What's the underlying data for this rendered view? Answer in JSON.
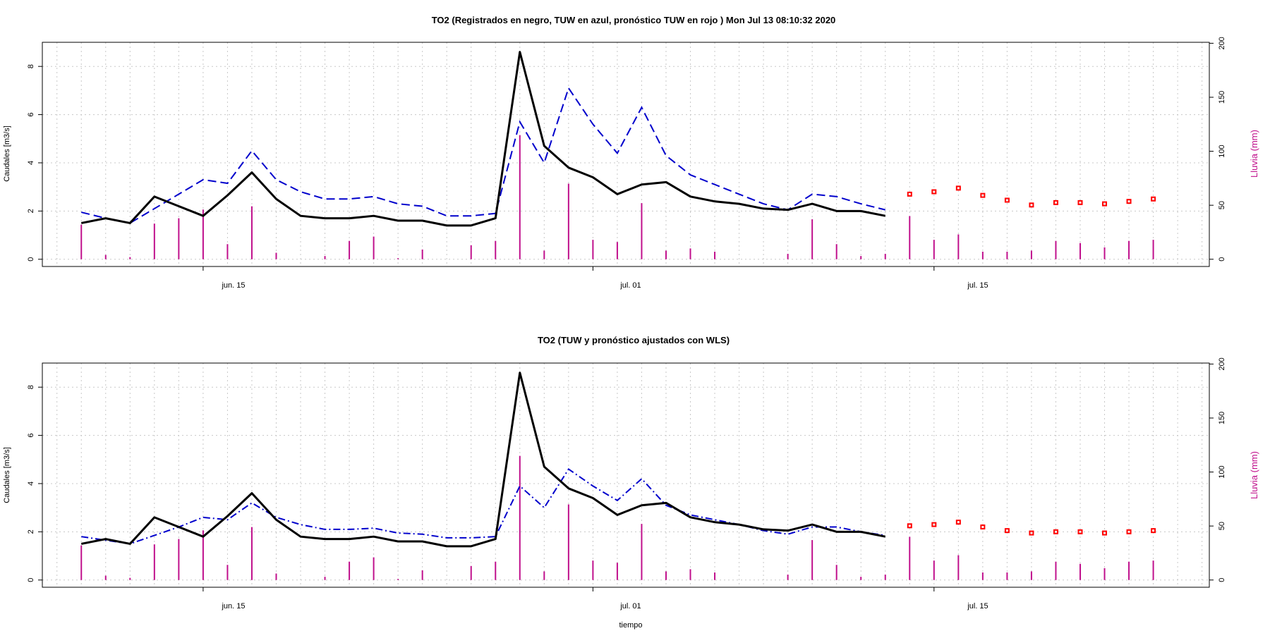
{
  "colors": {
    "observed": "#000000",
    "simulated": "#0000cc",
    "forecast": "#ff0000",
    "rain": "#c0108c",
    "rain_axis": "#c0108c",
    "grid": "#c8c8c8"
  },
  "x_tick_labels": [
    "jun. 15",
    "jul. 01",
    "jul. 15"
  ],
  "xlabel": "tiempo",
  "chart_data": [
    {
      "type": "line",
      "title": "TO2  (Registrados en negro, TUW en azul, pronóstico TUW en rojo ) Mon Jul 13 08:10:32 2020",
      "ylabel": "Caudales [m3/s]",
      "ylabel_right": "Lluvia (mm)",
      "x_start_date": "2020-06-10",
      "x_range_days": [
        -1.6,
        46.3
      ],
      "ylim": [
        -0.3,
        9.0
      ],
      "y2lim": [
        -6.7,
        200.9
      ],
      "yticks": [
        0,
        2,
        4,
        6,
        8
      ],
      "y2ticks": [
        0,
        50,
        100,
        150,
        200
      ],
      "grid": true,
      "observed": [
        1.5,
        1.7,
        1.5,
        2.6,
        2.2,
        1.8,
        2.65,
        3.6,
        2.5,
        1.8,
        1.7,
        1.7,
        1.8,
        1.6,
        1.6,
        1.4,
        1.4,
        1.7,
        8.6,
        4.7,
        3.8,
        3.4,
        2.7,
        3.1,
        3.2,
        2.6,
        2.4,
        2.3,
        2.1,
        2.05,
        2.3,
        2.0,
        2.0,
        1.8
      ],
      "simulated": [
        1.95,
        1.7,
        1.5,
        2.1,
        2.7,
        3.3,
        3.15,
        4.5,
        3.3,
        2.8,
        2.5,
        2.5,
        2.6,
        2.3,
        2.2,
        1.8,
        1.8,
        1.9,
        5.7,
        4.0,
        7.1,
        5.6,
        4.4,
        6.3,
        4.3,
        3.5,
        3.1,
        2.7,
        2.3,
        2.05,
        2.7,
        2.6,
        2.3,
        2.05
      ],
      "forecast": [
        2.7,
        2.8,
        2.95,
        2.65,
        2.45,
        2.25,
        2.35,
        2.35,
        2.3,
        2.4,
        2.5
      ],
      "rain": [
        32,
        4,
        2,
        33,
        38,
        46,
        14,
        49,
        6,
        0,
        3,
        17,
        21,
        1,
        9,
        0,
        13,
        17,
        115,
        8,
        70,
        18,
        16,
        52,
        8,
        10,
        7,
        0,
        0,
        5,
        37,
        14,
        3,
        5,
        40,
        18,
        23,
        7,
        7,
        8,
        17,
        15,
        11,
        17,
        18
      ]
    },
    {
      "type": "line",
      "title": "TO2  (TUW y pronóstico ajustados con WLS)",
      "ylabel": "Caudales [m3/s]",
      "ylabel_right": "Lluvia (mm)",
      "xlabel": "tiempo",
      "x_start_date": "2020-06-10",
      "x_range_days": [
        -1.6,
        46.3
      ],
      "ylim": [
        -0.3,
        9.0
      ],
      "y2lim": [
        -6.7,
        200.9
      ],
      "yticks": [
        0,
        2,
        4,
        6,
        8
      ],
      "y2ticks": [
        0,
        50,
        100,
        150,
        200
      ],
      "grid": true,
      "observed": [
        1.5,
        1.7,
        1.5,
        2.6,
        2.2,
        1.8,
        2.65,
        3.6,
        2.5,
        1.8,
        1.7,
        1.7,
        1.8,
        1.6,
        1.6,
        1.4,
        1.4,
        1.7,
        8.6,
        4.7,
        3.8,
        3.4,
        2.7,
        3.1,
        3.2,
        2.6,
        2.4,
        2.3,
        2.1,
        2.05,
        2.3,
        2.0,
        2.0,
        1.8
      ],
      "simulated": [
        1.8,
        1.65,
        1.5,
        1.85,
        2.2,
        2.6,
        2.5,
        3.2,
        2.6,
        2.3,
        2.1,
        2.1,
        2.15,
        1.95,
        1.9,
        1.75,
        1.75,
        1.8,
        3.9,
        3.0,
        4.6,
        3.9,
        3.3,
        4.2,
        3.1,
        2.7,
        2.5,
        2.3,
        2.05,
        1.9,
        2.2,
        2.2,
        2.0,
        1.85
      ],
      "forecast": [
        2.25,
        2.3,
        2.4,
        2.2,
        2.05,
        1.95,
        2.0,
        2.0,
        1.95,
        2.0,
        2.05
      ],
      "rain": [
        32,
        4,
        2,
        33,
        38,
        46,
        14,
        49,
        6,
        0,
        3,
        17,
        21,
        1,
        9,
        0,
        13,
        17,
        115,
        8,
        70,
        18,
        16,
        52,
        8,
        10,
        7,
        0,
        0,
        5,
        37,
        14,
        3,
        5,
        40,
        18,
        23,
        7,
        7,
        8,
        17,
        15,
        11,
        17,
        18
      ]
    }
  ]
}
